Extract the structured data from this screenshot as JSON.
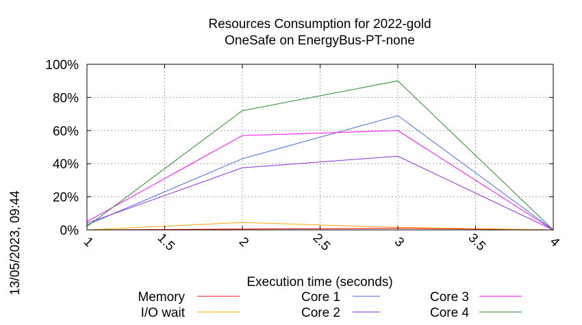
{
  "timestamp": "13/05/2023, 09:44",
  "chart_data": {
    "type": "line",
    "title": "Resources Consumption for 2022-gold",
    "subtitle": "OneSafe on EnergyBus-PT-none",
    "xlabel": "Execution time (seconds)",
    "ylabel": "",
    "xlim": [
      1,
      4
    ],
    "ylim": [
      0,
      100
    ],
    "xticks": [
      1,
      1.5,
      2,
      2.5,
      3,
      3.5,
      4
    ],
    "xtick_labels": [
      "1",
      "1.5",
      "2",
      "2.5",
      "3",
      "3.5",
      "4"
    ],
    "yticks": [
      0,
      20,
      40,
      60,
      80,
      100
    ],
    "ytick_labels": [
      "0%",
      "20%",
      "40%",
      "60%",
      "80%",
      "100%"
    ],
    "grid": true,
    "legend_position": "bottom",
    "series": [
      {
        "name": "Memory",
        "color": "#ff0000",
        "x": [
          1,
          2,
          3,
          4
        ],
        "values": [
          0,
          0.5,
          1,
          0
        ]
      },
      {
        "name": "I/O wait",
        "color": "#ffa500",
        "x": [
          1,
          2,
          3,
          4
        ],
        "values": [
          0,
          4.5,
          1.5,
          0
        ]
      },
      {
        "name": "Core 1",
        "color": "#4169e1",
        "x": [
          1,
          2,
          3,
          4
        ],
        "values": [
          3,
          43,
          69,
          0
        ]
      },
      {
        "name": "Core 2",
        "color": "#8a2be2",
        "x": [
          1,
          2,
          3,
          4
        ],
        "values": [
          4,
          37.5,
          44.5,
          0
        ]
      },
      {
        "name": "Core 3",
        "color": "#ff00ff",
        "x": [
          1,
          2,
          3,
          4
        ],
        "values": [
          5,
          57,
          60,
          0
        ]
      },
      {
        "name": "Core 4",
        "color": "#228b22",
        "x": [
          1,
          2,
          3,
          4
        ],
        "values": [
          2,
          72,
          90,
          0
        ]
      }
    ]
  }
}
